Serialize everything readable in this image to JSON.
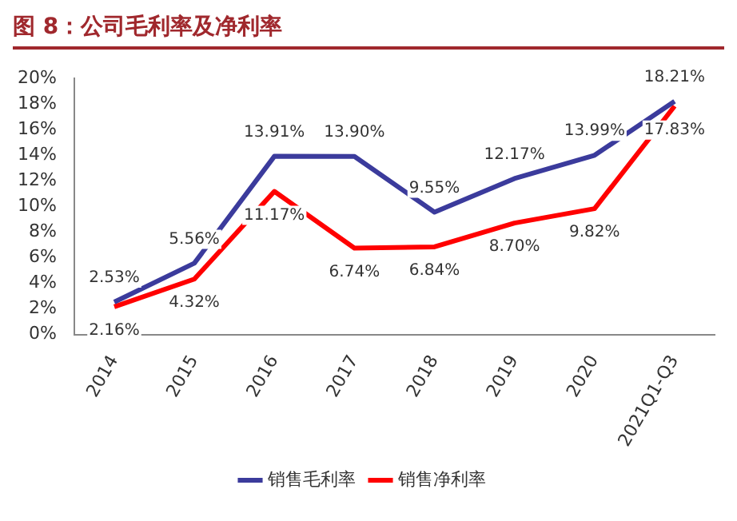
{
  "chart_data": {
    "type": "line",
    "title": "图 8：公司毛利率及净利率",
    "categories": [
      "2014",
      "2015",
      "2016",
      "2017",
      "2018",
      "2019",
      "2020",
      "2021Q1-Q3"
    ],
    "series": [
      {
        "name": "销售毛利率",
        "color": "#3b3b9c",
        "values": [
          2.53,
          5.56,
          13.91,
          13.9,
          9.55,
          12.17,
          13.99,
          18.21
        ],
        "value_labels": [
          "2.53%",
          "5.56%",
          "13.91%",
          "13.90%",
          "9.55%",
          "12.17%",
          "13.99%",
          "18.21%"
        ]
      },
      {
        "name": "销售净利率",
        "color": "#ff0000",
        "values": [
          2.16,
          4.32,
          11.17,
          6.74,
          6.84,
          8.7,
          9.82,
          17.83
        ],
        "value_labels": [
          "2.16%",
          "4.32%",
          "11.17%",
          "6.74%",
          "6.84%",
          "8.70%",
          "9.82%",
          "17.83%"
        ]
      }
    ],
    "ylim": [
      0,
      20
    ],
    "yticks": [
      {
        "value": 0,
        "label": "0%"
      },
      {
        "value": 2,
        "label": "2%"
      },
      {
        "value": 4,
        "label": "4%"
      },
      {
        "value": 6,
        "label": "6%"
      },
      {
        "value": 8,
        "label": "8%"
      },
      {
        "value": 10,
        "label": "10%"
      },
      {
        "value": 12,
        "label": "12%"
      },
      {
        "value": 14,
        "label": "14%"
      },
      {
        "value": 16,
        "label": "16%"
      },
      {
        "value": 18,
        "label": "18%"
      },
      {
        "value": 20,
        "label": "20%"
      }
    ],
    "grid": false,
    "legend": "bottom",
    "marker": "none",
    "line_style": "solid"
  }
}
